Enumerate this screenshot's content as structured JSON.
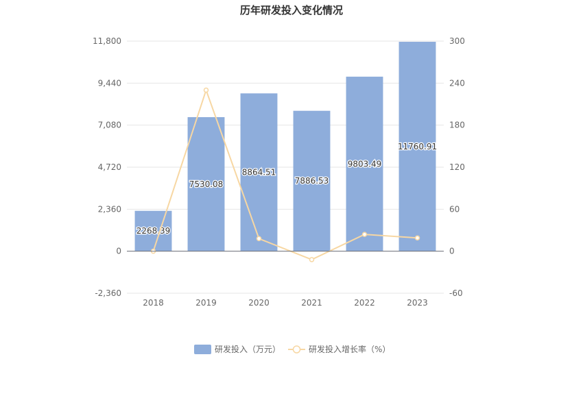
{
  "chart_data": {
    "type": "bar",
    "title": "历年研发投入变化情况",
    "categories": [
      "2018",
      "2019",
      "2020",
      "2021",
      "2022",
      "2023"
    ],
    "series": [
      {
        "name": "研发投入（万元）",
        "type": "bar",
        "axis": "left",
        "values": [
          2268.39,
          7530.08,
          8864.51,
          7886.53,
          9803.49,
          11760.91
        ],
        "labels": [
          "2268.39",
          "7530.08",
          "8864.51",
          "7886.53",
          "9803.49",
          "11760.91"
        ],
        "color": "#8eaddb"
      },
      {
        "name": "研发投入增长率（%）",
        "type": "line",
        "axis": "right",
        "values": [
          0,
          230,
          18,
          -12,
          24,
          19
        ],
        "color": "#f7d7a3"
      }
    ],
    "y_left": {
      "range": [
        -2360,
        11800
      ],
      "ticks": [
        -2360,
        0,
        2360,
        4720,
        7080,
        9440,
        11800
      ],
      "tick_labels": [
        "-2,360",
        "0",
        "2,360",
        "4,720",
        "7,080",
        "9,440",
        "11,800"
      ]
    },
    "y_right": {
      "range": [
        -60,
        300
      ],
      "ticks": [
        -60,
        0,
        60,
        120,
        180,
        240,
        300
      ],
      "tick_labels": [
        "-60",
        "0",
        "60",
        "120",
        "180",
        "240",
        "300"
      ]
    },
    "grid": true,
    "legend": "bottom-center",
    "colors": {
      "bar": "#8eaddb",
      "line": "#f7d7a3",
      "grid": "#e6e6e6",
      "axis_text": "#666666",
      "title": "#333333"
    }
  }
}
